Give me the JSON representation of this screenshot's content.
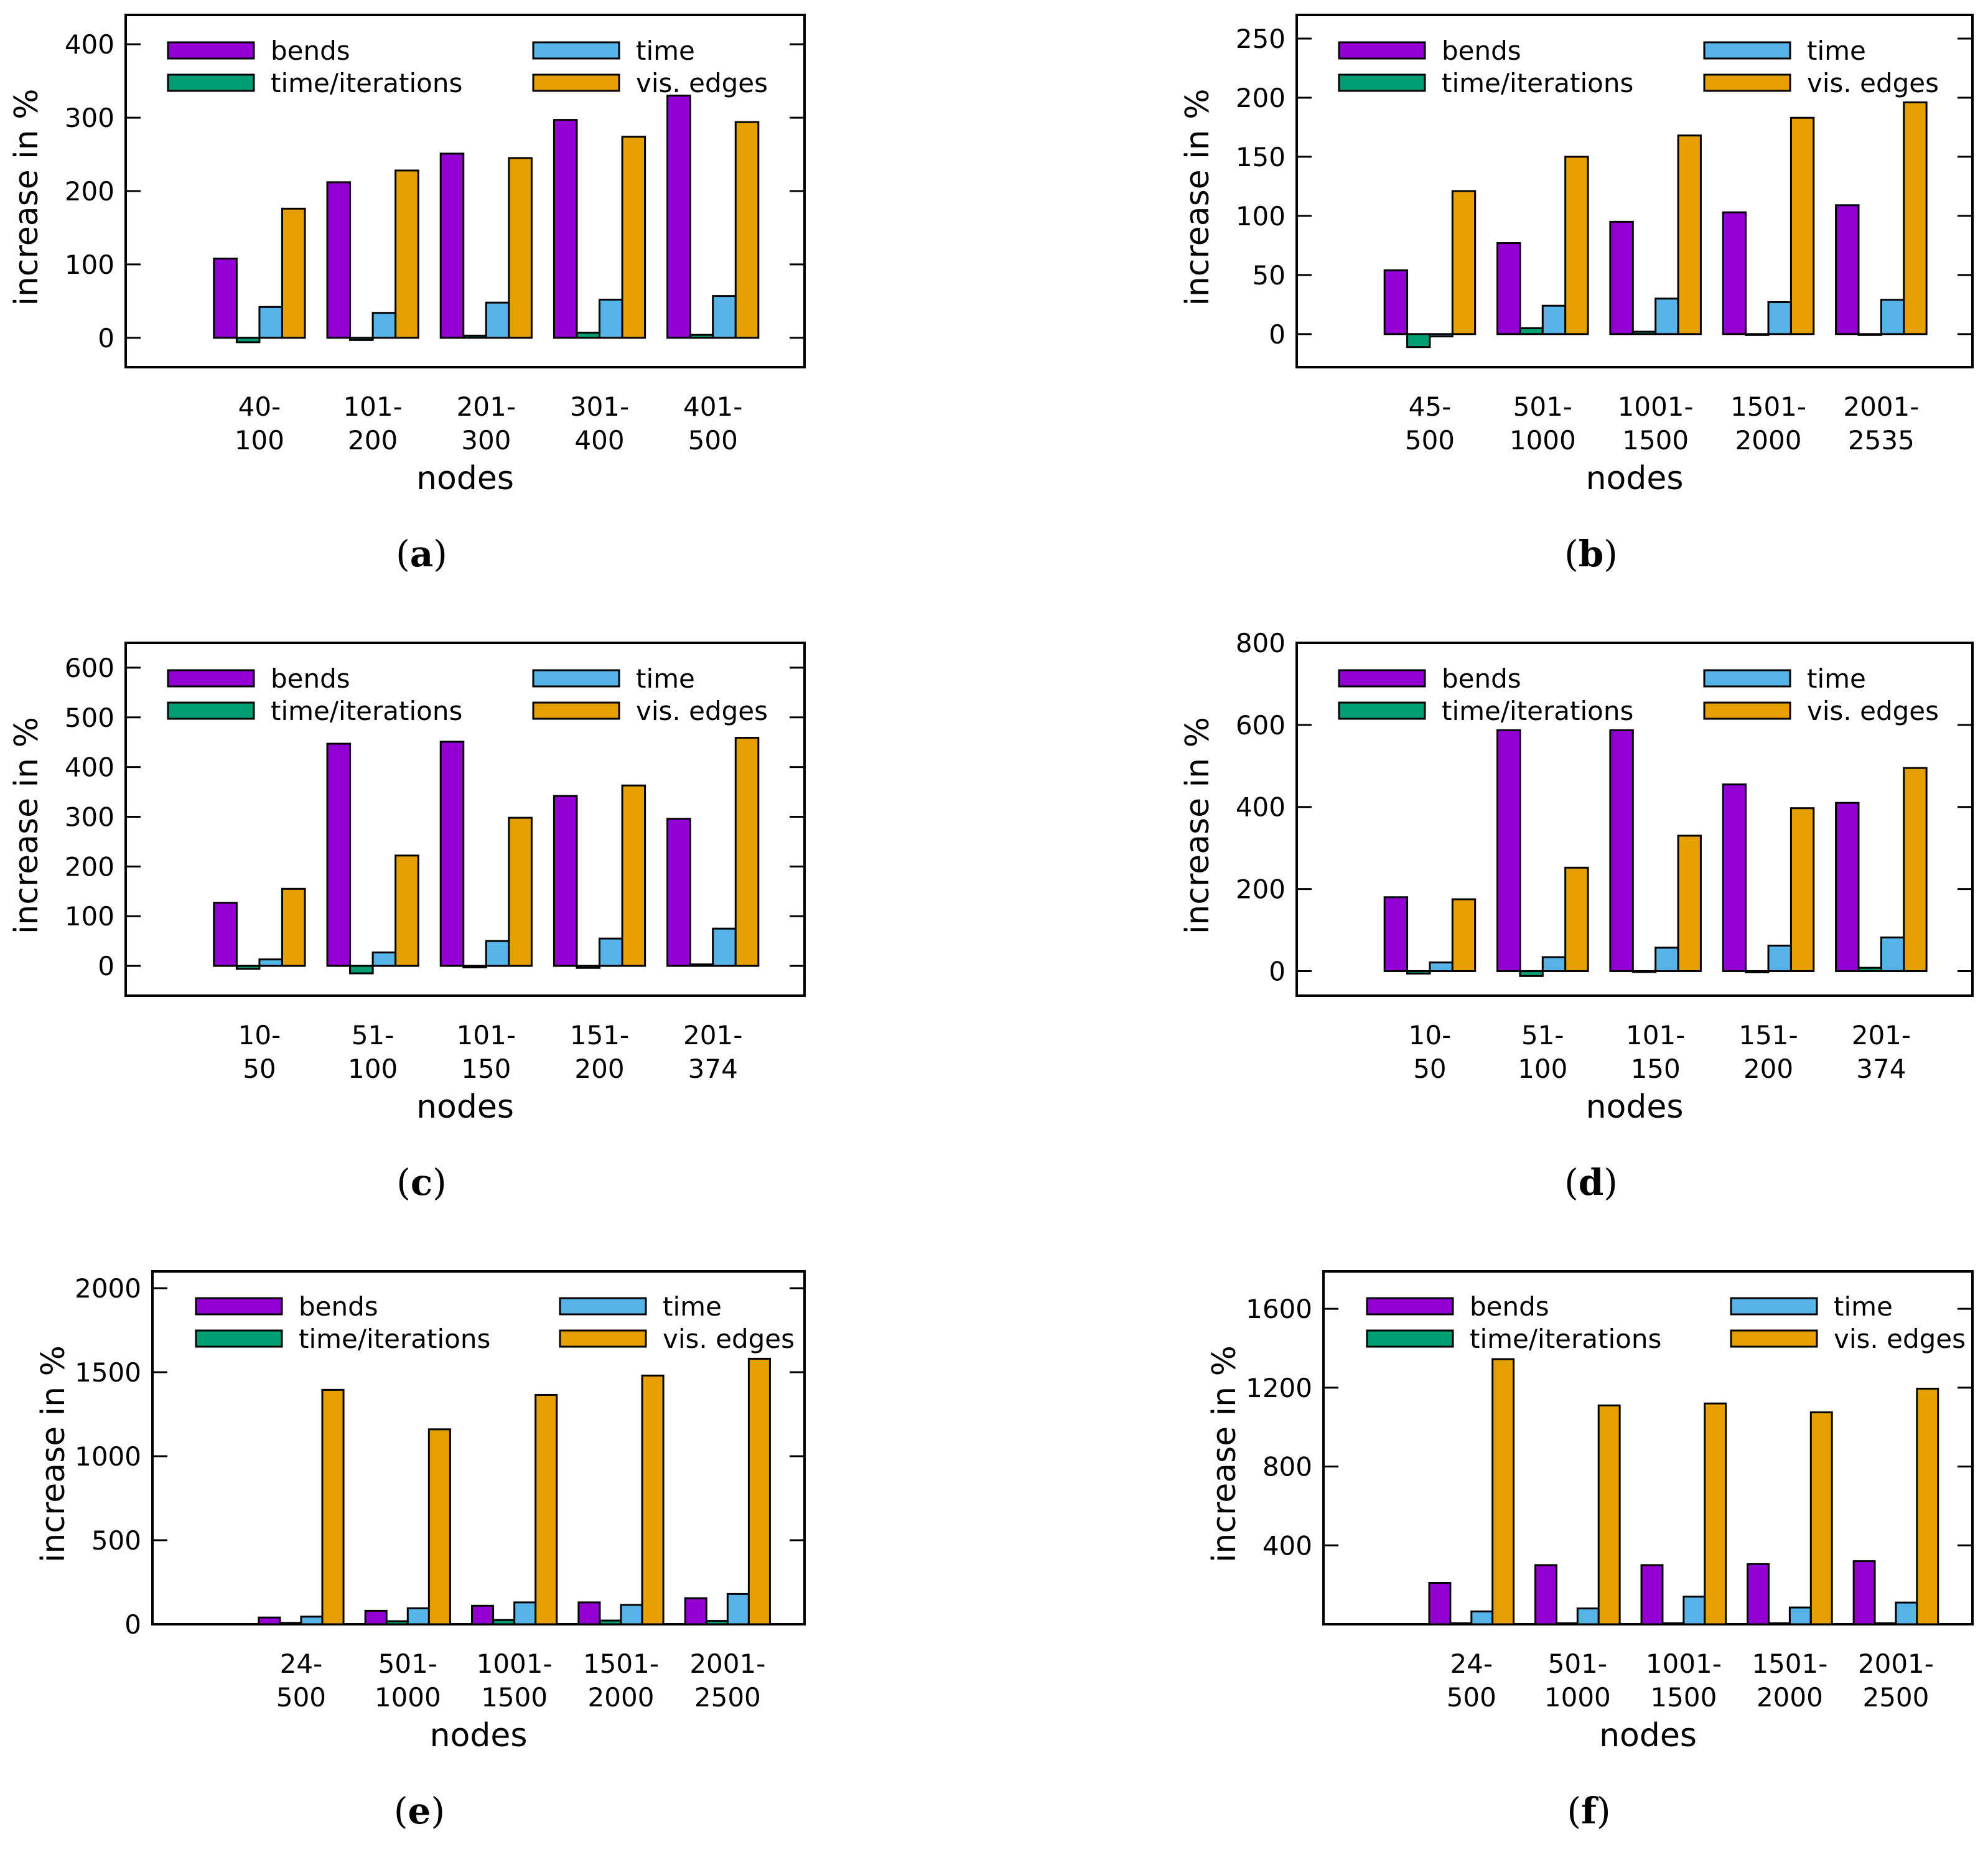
{
  "colors": {
    "bends": "#9400D3",
    "time_iterations": "#009E73",
    "time": "#56B4E9",
    "vis_edges": "#E69F00"
  },
  "series_names": [
    "bends",
    "time/iterations",
    "time",
    "vis. edges"
  ],
  "chart_data": [
    {
      "type": "bar",
      "panel": "a",
      "caption_letter": "a",
      "ylabel": "increase in %",
      "xlabel": "nodes",
      "ylim": [
        -40,
        440
      ],
      "yticks": [
        "0",
        "100",
        "200",
        "300",
        "400"
      ],
      "ytick_values": [
        0,
        100,
        200,
        300,
        400
      ],
      "categories": [
        [
          "40-",
          "100"
        ],
        [
          "101-",
          "200"
        ],
        [
          "201-",
          "300"
        ],
        [
          "301-",
          "400"
        ],
        [
          "401-",
          "500"
        ]
      ],
      "series": [
        {
          "name": "bends",
          "values": [
            108,
            212,
            251,
            297,
            330
          ]
        },
        {
          "name": "time/iterations",
          "values": [
            -6,
            -3,
            3,
            7,
            4
          ]
        },
        {
          "name": "time",
          "values": [
            42,
            34,
            48,
            52,
            57
          ]
        },
        {
          "name": "vis. edges",
          "values": [
            176,
            228,
            245,
            274,
            294
          ]
        }
      ]
    },
    {
      "type": "bar",
      "panel": "b",
      "caption_letter": "b",
      "ylabel": "increase in %",
      "xlabel": "nodes",
      "ylim": [
        -28,
        270
      ],
      "yticks": [
        "0",
        "50",
        "100",
        "150",
        "200",
        "250"
      ],
      "ytick_values": [
        0,
        50,
        100,
        150,
        200,
        250
      ],
      "categories": [
        [
          "45-",
          "500"
        ],
        [
          "501-",
          "1000"
        ],
        [
          "1001-",
          "1500"
        ],
        [
          "1501-",
          "2000"
        ],
        [
          "2001-",
          "2535"
        ]
      ],
      "series": [
        {
          "name": "bends",
          "values": [
            54,
            77,
            95,
            103,
            109
          ]
        },
        {
          "name": "time/iterations",
          "values": [
            -11,
            5,
            2,
            0,
            0
          ]
        },
        {
          "name": "time",
          "values": [
            -2,
            24,
            30,
            27,
            29
          ]
        },
        {
          "name": "vis. edges",
          "values": [
            121,
            150,
            168,
            183,
            196
          ]
        }
      ]
    },
    {
      "type": "bar",
      "panel": "c",
      "caption_letter": "c",
      "ylabel": "increase in %",
      "xlabel": "nodes",
      "ylim": [
        -60,
        650
      ],
      "yticks": [
        "0",
        "100",
        "200",
        "300",
        "400",
        "500",
        "600"
      ],
      "ytick_values": [
        0,
        100,
        200,
        300,
        400,
        500,
        600
      ],
      "categories": [
        [
          "10-",
          "50"
        ],
        [
          "51-",
          "100"
        ],
        [
          "101-",
          "150"
        ],
        [
          "151-",
          "200"
        ],
        [
          "201-",
          "374"
        ]
      ],
      "series": [
        {
          "name": "bends",
          "values": [
            127,
            447,
            451,
            342,
            296
          ]
        },
        {
          "name": "time/iterations",
          "values": [
            -6,
            -15,
            -3,
            -4,
            3
          ]
        },
        {
          "name": "time",
          "values": [
            13,
            27,
            50,
            55,
            75
          ]
        },
        {
          "name": "vis. edges",
          "values": [
            155,
            222,
            298,
            363,
            459
          ]
        }
      ]
    },
    {
      "type": "bar",
      "panel": "d",
      "caption_letter": "d",
      "ylabel": "increase in %",
      "xlabel": "nodes",
      "ylim": [
        -60,
        800
      ],
      "yticks": [
        "0",
        "200",
        "400",
        "600",
        "800"
      ],
      "ytick_values": [
        0,
        200,
        400,
        600,
        800
      ],
      "categories": [
        [
          "10-",
          "50"
        ],
        [
          "51-",
          "100"
        ],
        [
          "101-",
          "150"
        ],
        [
          "151-",
          "200"
        ],
        [
          "201-",
          "374"
        ]
      ],
      "series": [
        {
          "name": "bends",
          "values": [
            180,
            587,
            587,
            455,
            410
          ]
        },
        {
          "name": "time/iterations",
          "values": [
            -6,
            -12,
            -2,
            -3,
            8
          ]
        },
        {
          "name": "time",
          "values": [
            21,
            34,
            57,
            62,
            82
          ]
        },
        {
          "name": "vis. edges",
          "values": [
            175,
            252,
            330,
            397,
            495
          ]
        }
      ]
    },
    {
      "type": "bar",
      "panel": "e",
      "caption_letter": "e",
      "ylabel": "increase in %",
      "xlabel": "nodes",
      "ylim": [
        0,
        2100
      ],
      "yticks": [
        "0",
        "500",
        "1000",
        "1500",
        "2000"
      ],
      "ytick_values": [
        0,
        500,
        1000,
        1500,
        2000
      ],
      "categories": [
        [
          "24-",
          "500"
        ],
        [
          "501-",
          "1000"
        ],
        [
          "1001-",
          "1500"
        ],
        [
          "1501-",
          "2000"
        ],
        [
          "2001-",
          "2500"
        ]
      ],
      "series": [
        {
          "name": "bends",
          "values": [
            40,
            80,
            110,
            130,
            155
          ]
        },
        {
          "name": "time/iterations",
          "values": [
            8,
            18,
            25,
            22,
            20
          ]
        },
        {
          "name": "time",
          "values": [
            45,
            95,
            130,
            115,
            180
          ]
        },
        {
          "name": "vis. edges",
          "values": [
            1395,
            1160,
            1365,
            1480,
            1580
          ]
        }
      ]
    },
    {
      "type": "bar",
      "panel": "f",
      "caption_letter": "f",
      "ylabel": "increase in %",
      "xlabel": "nodes",
      "ylim": [
        0,
        1790
      ],
      "yticks": [
        "400",
        "800",
        "1200",
        "1600"
      ],
      "ytick_values": [
        400,
        800,
        1200,
        1600
      ],
      "categories": [
        [
          "24-",
          "500"
        ],
        [
          "501-",
          "1000"
        ],
        [
          "1001-",
          "1500"
        ],
        [
          "1501-",
          "2000"
        ],
        [
          "2001-",
          "2500"
        ]
      ],
      "series": [
        {
          "name": "bends",
          "values": [
            210,
            300,
            300,
            305,
            320
          ]
        },
        {
          "name": "time/iterations",
          "values": [
            5,
            5,
            5,
            5,
            5
          ]
        },
        {
          "name": "time",
          "values": [
            65,
            80,
            140,
            85,
            110
          ]
        },
        {
          "name": "vis. edges",
          "values": [
            1345,
            1110,
            1120,
            1075,
            1195
          ]
        }
      ]
    }
  ]
}
